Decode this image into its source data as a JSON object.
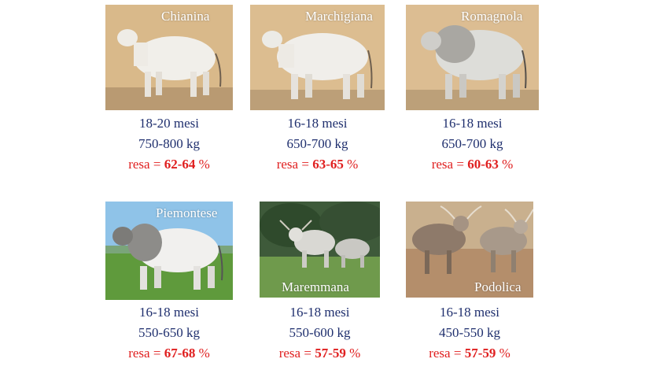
{
  "breeds": [
    {
      "name": "Chianina",
      "age": "18-20 mesi",
      "weight": "750-800 kg",
      "resa_label": "resa = ",
      "resa_value": "62-64",
      "resa_unit": " %"
    },
    {
      "name": "Marchigiana",
      "age": "16-18 mesi",
      "weight": "650-700  kg",
      "resa_label": "resa = ",
      "resa_value": "63-65",
      "resa_unit": " %"
    },
    {
      "name": "Romagnola",
      "age": "16-18 mesi",
      "weight": "650-700  kg",
      "resa_label": "resa = ",
      "resa_value": "60-63",
      "resa_unit": " %"
    },
    {
      "name": "Piemontese",
      "age": "16-18 mesi",
      "weight": "550-650 kg",
      "resa_label": "resa = ",
      "resa_value": "67-68",
      "resa_unit": " %"
    },
    {
      "name": "Maremmana",
      "age": "16-18 mesi",
      "weight": "550-600 kg",
      "resa_label": "resa = ",
      "resa_value": "57-59",
      "resa_unit": " %"
    },
    {
      "name": "Podolica",
      "age": "16-18 mesi",
      "weight": "450-550  kg",
      "resa_label": "resa = ",
      "resa_value": "57-59",
      "resa_unit": " %"
    }
  ],
  "colors": {
    "text": "#1f2f6e",
    "resa": "#e02020",
    "label": "#ffffff"
  }
}
